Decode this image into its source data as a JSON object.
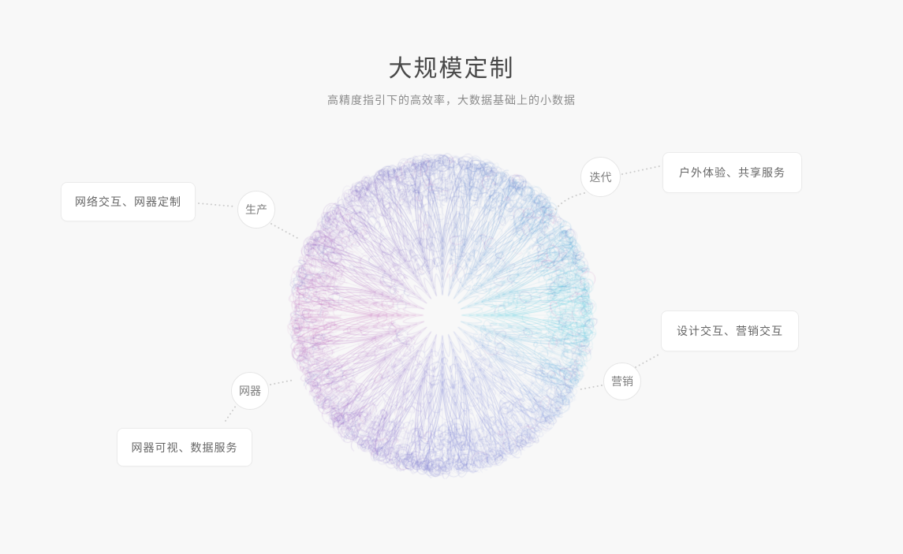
{
  "page": {
    "background": "#f8f8f8"
  },
  "header": {
    "title": "大规模定制",
    "subtitle": "高精度指引下的高效率，大数据基础上的小数据"
  },
  "diagram": {
    "nodes": [
      {
        "label": "生产"
      },
      {
        "label": "迭代"
      },
      {
        "label": "营销"
      },
      {
        "label": "网器"
      }
    ],
    "cards": [
      {
        "label": "网络交互、网器定制"
      },
      {
        "label": "户外体验、共享服务"
      },
      {
        "label": "设计交互、营销交互"
      },
      {
        "label": "网器可视、数据服务"
      }
    ],
    "connector_color": "#cccccc",
    "sphere": {
      "palette": [
        {
          "angle": 0,
          "color": "#4ec9dd"
        },
        {
          "angle": 45,
          "color": "#8a9ade"
        },
        {
          "angle": 90,
          "color": "#6f74d0"
        },
        {
          "angle": 135,
          "color": "#9a6cc8"
        },
        {
          "angle": 180,
          "color": "#c266b8"
        },
        {
          "angle": 225,
          "color": "#8f68c4"
        },
        {
          "angle": 270,
          "color": "#6a77c8"
        },
        {
          "angle": 315,
          "color": "#5b9ad6"
        },
        {
          "angle": 360,
          "color": "#4ec9dd"
        }
      ],
      "fleck_indigo": "#6a6ec2",
      "fleck_pink": "#c05fae"
    }
  }
}
